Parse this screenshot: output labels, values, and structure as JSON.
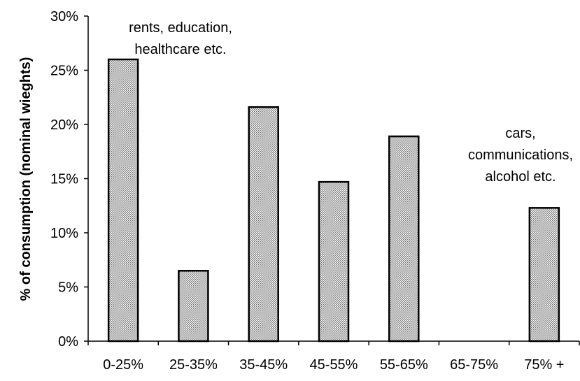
{
  "chart_data": {
    "type": "bar",
    "title": "",
    "xlabel": "",
    "ylabel": "% of consumption (nominal wieghts)",
    "categories": [
      "0-25%",
      "25-35%",
      "35-45%",
      "45-55%",
      "55-65%",
      "65-75%",
      "75% +"
    ],
    "values": [
      26.0,
      6.5,
      21.6,
      14.7,
      18.9,
      0,
      12.3
    ],
    "ylim": [
      0,
      30
    ],
    "yticks": [
      "0%",
      "5%",
      "10%",
      "15%",
      "20%",
      "25%",
      "30%"
    ],
    "ytick_values": [
      0,
      5,
      10,
      15,
      20,
      25,
      30
    ],
    "grid": false,
    "legend": "none",
    "bar_fill": "dotted gray hatch",
    "bar_color": "#b4b4b4",
    "annotations": [
      {
        "lines": [
          "rents, education,",
          "healthcare etc."
        ],
        "category": "0-25%"
      },
      {
        "lines": [
          "cars,",
          "communications,",
          "alcohol etc."
        ],
        "category": "75% +"
      }
    ]
  }
}
